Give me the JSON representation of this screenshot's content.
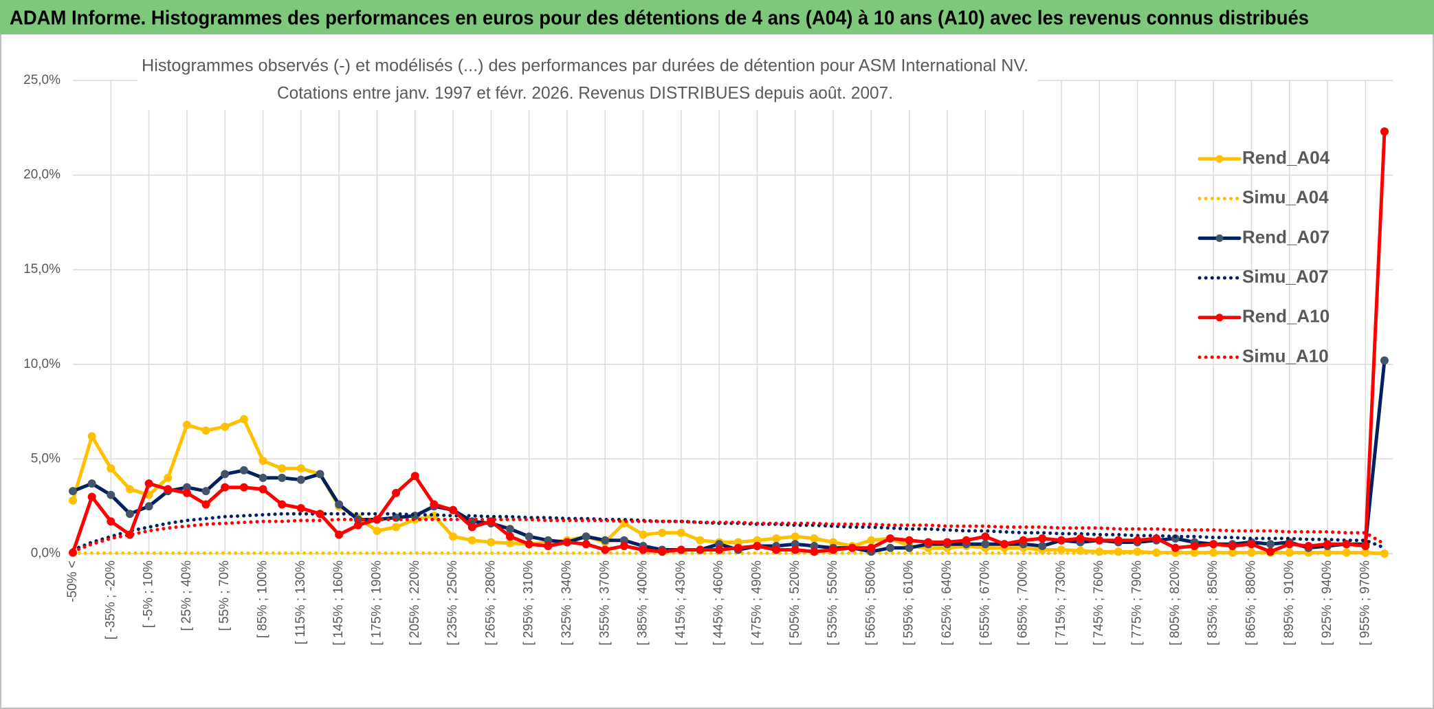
{
  "chart_data": {
    "type": "line",
    "header": "ADAM Informe. Histogrammes des performances en euros pour des détentions de 4 ans (A04) à 10 ans (A10) avec les revenus connus distribués",
    "title": "Histogrammes observés (-) et modélisés (...) des performances par durées de détention pour ASM International NV.",
    "subtitle": "Cotations entre janv. 1997 et févr. 2026. Revenus DISTRIBUES depuis août. 2007.",
    "categories": [
      "-50% <",
      null,
      "[ -35% ; -20%",
      null,
      "[ -5% ; 10%",
      null,
      "[ 25% ; 40%",
      null,
      "[ 55% ; 70%",
      null,
      "[ 85% ; 100%",
      null,
      "[ 115% ; 130%",
      null,
      "[ 145% ; 160%",
      null,
      "[ 175% ; 190%",
      null,
      "[ 205% ; 220%",
      null,
      "[ 235% ; 250%",
      null,
      "[ 265% ; 280%",
      null,
      "[ 295% ; 310%",
      null,
      "[ 325% ; 340%",
      null,
      "[ 355% ; 370%",
      null,
      "[ 385% ; 400%",
      null,
      "[ 415% ; 430%",
      null,
      "[ 445% ; 460%",
      null,
      "[ 475% ; 490%",
      null,
      "[ 505% ; 520%",
      null,
      "[ 535% ; 550%",
      null,
      "[ 565% ; 580%",
      null,
      "[ 595% ; 610%",
      null,
      "[ 625% ; 640%",
      null,
      "[ 655% ; 670%",
      null,
      "[ 685% ; 700%",
      null,
      "[ 715% ; 730%",
      null,
      "[ 745% ; 760%",
      null,
      "[ 775% ; 790%",
      null,
      "[ 805% ; 820%",
      null,
      "[ 835% ; 850%",
      null,
      "[ 865% ; 880%",
      null,
      "[ 895% ; 910%",
      null,
      "[ 925% ; 940%",
      null,
      "[ 955% ; 970%",
      null
    ],
    "series": [
      {
        "name": "Rend_A04",
        "color": "#FFC000",
        "marker_color": "#FFC000",
        "line_style": "solid",
        "markers": true,
        "values": [
          2.8,
          6.2,
          4.5,
          3.4,
          3.1,
          4.0,
          6.8,
          6.5,
          6.7,
          7.1,
          4.9,
          4.5,
          4.5,
          4.2,
          2.5,
          1.9,
          1.2,
          1.4,
          1.8,
          2.0,
          0.9,
          0.7,
          0.6,
          0.55,
          0.5,
          0.6,
          0.7,
          0.9,
          0.6,
          1.6,
          1.0,
          1.1,
          1.1,
          0.7,
          0.6,
          0.6,
          0.7,
          0.8,
          0.9,
          0.8,
          0.6,
          0.4,
          0.7,
          0.8,
          0.4,
          0.3,
          0.3,
          0.4,
          0.3,
          0.3,
          0.3,
          0.2,
          0.2,
          0.15,
          0.1,
          0.1,
          0.1,
          0.05,
          0.05,
          0.05,
          0.05,
          0.05,
          0.05,
          0.05,
          0.05,
          0.05,
          0.05,
          0.05,
          0.05,
          0.0
        ]
      },
      {
        "name": "Simu_A04",
        "color": "#FFC000",
        "line_style": "dotted",
        "markers": false,
        "values": [
          0.02,
          0.02,
          0.02,
          0.02,
          0.02,
          0.02,
          0.02,
          0.02,
          0.02,
          0.02,
          0.02,
          0.02,
          0.02,
          0.02,
          0.02,
          0.02,
          0.02,
          0.02,
          0.02,
          0.02,
          0.02,
          0.02,
          0.02,
          0.02,
          0.02,
          0.02,
          0.02,
          0.02,
          0.02,
          0.02,
          0.02,
          0.02,
          0.02,
          0.02,
          0.02,
          0.02,
          0.02,
          0.02,
          0.02,
          0.02,
          0.02,
          0.02,
          0.02,
          0.02,
          0.02,
          0.02,
          0.02,
          0.02,
          0.02,
          0.02,
          0.02,
          0.02,
          0.02,
          0.02,
          0.02,
          0.02,
          0.02,
          0.02,
          0.02,
          0.02,
          0.02,
          0.02,
          0.02,
          0.02,
          0.02,
          0.02,
          0.02,
          0.02,
          0.02,
          0.02
        ]
      },
      {
        "name": "Rend_A07",
        "color": "#002060",
        "marker_color": "#44546A",
        "line_style": "solid",
        "markers": true,
        "values": [
          3.3,
          3.7,
          3.1,
          2.1,
          2.5,
          3.3,
          3.5,
          3.3,
          4.2,
          4.4,
          4.0,
          4.0,
          3.9,
          4.2,
          2.6,
          1.8,
          1.8,
          1.9,
          2.0,
          2.5,
          2.3,
          1.7,
          1.6,
          1.3,
          0.9,
          0.7,
          0.6,
          0.9,
          0.7,
          0.7,
          0.4,
          0.2,
          0.2,
          0.2,
          0.5,
          0.2,
          0.4,
          0.4,
          0.5,
          0.4,
          0.3,
          0.3,
          0.1,
          0.3,
          0.3,
          0.5,
          0.5,
          0.5,
          0.5,
          0.5,
          0.5,
          0.4,
          0.7,
          0.6,
          0.7,
          0.6,
          0.6,
          0.7,
          0.8,
          0.6,
          0.5,
          0.5,
          0.6,
          0.5,
          0.6,
          0.3,
          0.4,
          0.5,
          0.5,
          10.2
        ]
      },
      {
        "name": "Simu_A07",
        "color": "#002060",
        "line_style": "dotted",
        "markers": false,
        "values": [
          0.2,
          0.6,
          0.9,
          1.2,
          1.4,
          1.6,
          1.75,
          1.85,
          1.95,
          2.0,
          2.05,
          2.1,
          2.1,
          2.1,
          2.1,
          2.1,
          2.1,
          2.1,
          2.05,
          2.05,
          2.0,
          2.0,
          1.95,
          1.95,
          1.9,
          1.9,
          1.85,
          1.85,
          1.8,
          1.8,
          1.75,
          1.7,
          1.7,
          1.65,
          1.6,
          1.6,
          1.55,
          1.55,
          1.5,
          1.5,
          1.45,
          1.4,
          1.4,
          1.35,
          1.3,
          1.3,
          1.25,
          1.2,
          1.2,
          1.15,
          1.1,
          1.1,
          1.05,
          1.05,
          1.0,
          1.0,
          0.95,
          0.95,
          0.9,
          0.9,
          0.85,
          0.85,
          0.8,
          0.8,
          0.8,
          0.75,
          0.75,
          0.7,
          0.7,
          0.3
        ]
      },
      {
        "name": "Rend_A10",
        "color": "#FF0000",
        "marker_color": "#FF0000",
        "line_style": "solid",
        "markers": true,
        "values": [
          0.05,
          3.0,
          1.7,
          1.0,
          3.7,
          3.4,
          3.2,
          2.6,
          3.5,
          3.5,
          3.4,
          2.6,
          2.4,
          2.1,
          1.0,
          1.5,
          1.8,
          3.2,
          4.1,
          2.6,
          2.3,
          1.4,
          1.7,
          0.9,
          0.5,
          0.4,
          0.6,
          0.5,
          0.2,
          0.4,
          0.2,
          0.1,
          0.2,
          0.2,
          0.2,
          0.3,
          0.4,
          0.2,
          0.2,
          0.1,
          0.2,
          0.3,
          0.3,
          0.8,
          0.7,
          0.6,
          0.6,
          0.7,
          0.9,
          0.5,
          0.7,
          0.8,
          0.7,
          0.8,
          0.7,
          0.7,
          0.7,
          0.8,
          0.3,
          0.4,
          0.5,
          0.4,
          0.5,
          0.1,
          0.5,
          0.4,
          0.5,
          0.5,
          0.4,
          22.3
        ]
      },
      {
        "name": "Simu_A10",
        "color": "#FF0000",
        "line_style": "dotted",
        "markers": false,
        "values": [
          0.1,
          0.5,
          0.8,
          1.0,
          1.2,
          1.35,
          1.45,
          1.55,
          1.6,
          1.65,
          1.7,
          1.7,
          1.75,
          1.75,
          1.8,
          1.8,
          1.8,
          1.8,
          1.8,
          1.8,
          1.8,
          1.8,
          1.8,
          1.8,
          1.8,
          1.75,
          1.75,
          1.75,
          1.75,
          1.7,
          1.7,
          1.7,
          1.7,
          1.65,
          1.65,
          1.65,
          1.6,
          1.6,
          1.6,
          1.6,
          1.55,
          1.55,
          1.55,
          1.5,
          1.5,
          1.5,
          1.45,
          1.45,
          1.45,
          1.4,
          1.4,
          1.4,
          1.35,
          1.35,
          1.35,
          1.3,
          1.3,
          1.3,
          1.25,
          1.25,
          1.25,
          1.2,
          1.2,
          1.2,
          1.15,
          1.15,
          1.15,
          1.1,
          1.1,
          0.5
        ]
      }
    ],
    "ylim": [
      0,
      25
    ],
    "yticks": [
      {
        "value": 0,
        "label": "0,0%"
      },
      {
        "value": 5,
        "label": "5,0%"
      },
      {
        "value": 10,
        "label": "10,0%"
      },
      {
        "value": 15,
        "label": "15,0%"
      },
      {
        "value": 20,
        "label": "20,0%"
      },
      {
        "value": 25,
        "label": "25,0%"
      }
    ],
    "grid": true,
    "legend": "right",
    "header_color": "#7DC87A"
  }
}
